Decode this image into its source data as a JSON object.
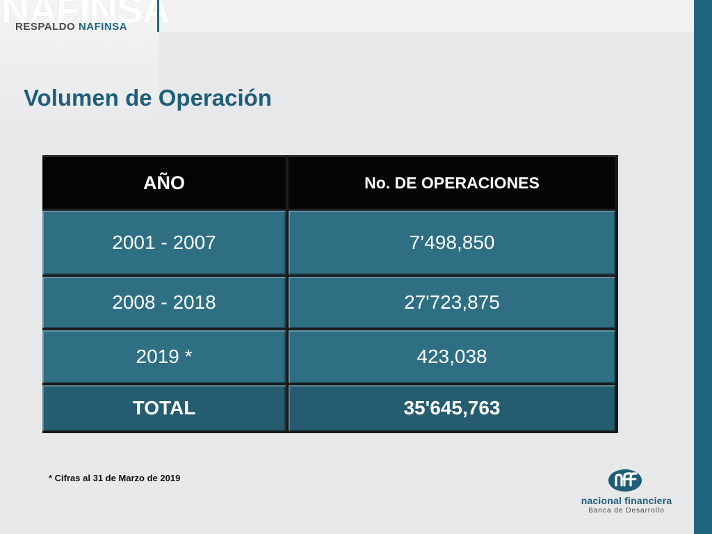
{
  "header": {
    "brand_watermark": "NAFINSA",
    "brand_sub_prefix": "RESPALDO ",
    "brand_sub_accent": "NAFINSA"
  },
  "title": "Volumen de Operación",
  "table": {
    "headers": {
      "year": "AÑO",
      "operations": "No. DE OPERACIONES"
    },
    "rows": [
      {
        "year": "2001 - 2007",
        "operations": "7’498,850"
      },
      {
        "year": "2008 - 2018",
        "operations": "27'723,875"
      },
      {
        "year": "2019 *",
        "operations": "423,038"
      }
    ],
    "total": {
      "label": "TOTAL",
      "value": "35'645,763"
    }
  },
  "footnote": "* Cifras al 31 de Marzo de 2019",
  "logo": {
    "name": "nacional financiera",
    "subtitle": "Banca de Desarrollo",
    "color": "#1e5e78"
  },
  "colors": {
    "accent": "#1f6781",
    "cell": "#2f6f84",
    "total_cell": "#255c6f",
    "header_cell": "#050505"
  }
}
